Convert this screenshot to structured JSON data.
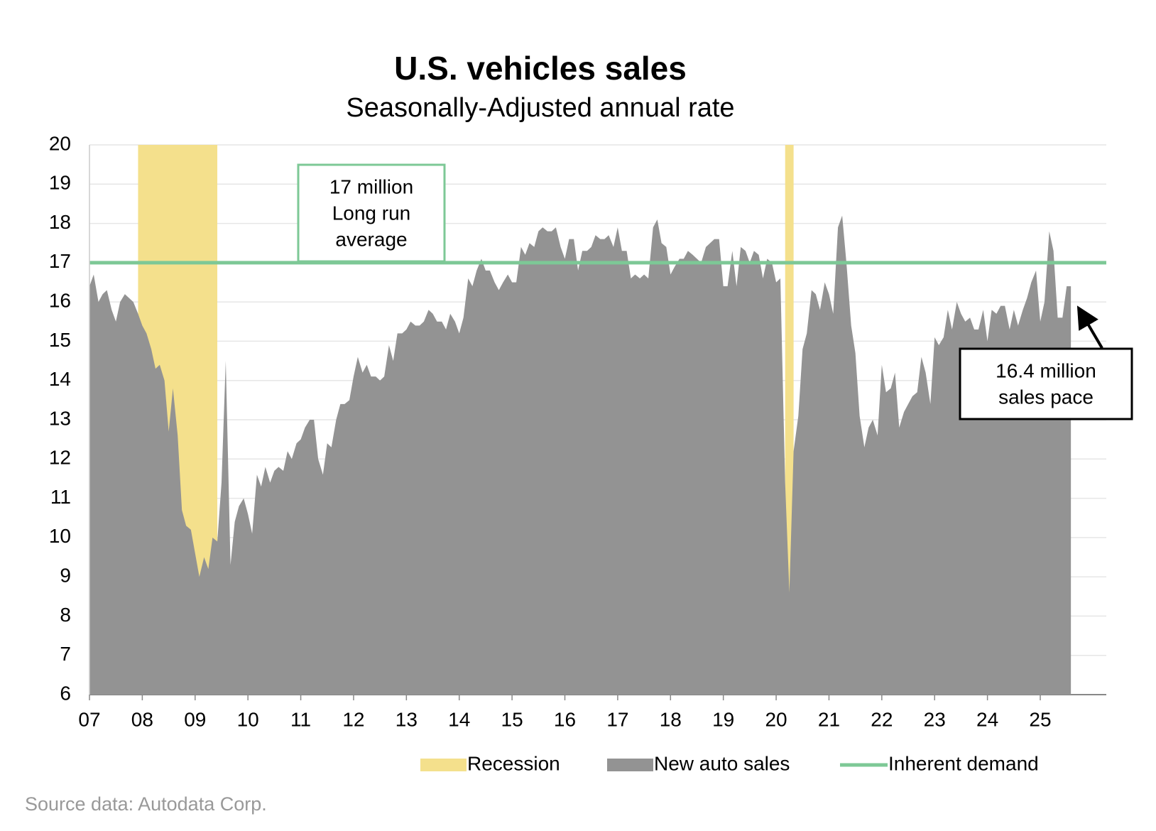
{
  "chart_data": {
    "type": "area",
    "title": "U.S. vehicles sales",
    "subtitle": "Seasonally-Adjusted annual rate",
    "source": "Source data: Autodata Corp.",
    "ylim": [
      6,
      20
    ],
    "yticks": [
      6,
      7,
      8,
      9,
      10,
      11,
      12,
      13,
      14,
      15,
      16,
      17,
      18,
      19,
      20
    ],
    "xlim": [
      2007,
      2026.25
    ],
    "xticks": [
      {
        "value": 2007,
        "label": "07"
      },
      {
        "value": 2008,
        "label": "08"
      },
      {
        "value": 2009,
        "label": "09"
      },
      {
        "value": 2010,
        "label": "10"
      },
      {
        "value": 2011,
        "label": "11"
      },
      {
        "value": 2012,
        "label": "12"
      },
      {
        "value": 2013,
        "label": "13"
      },
      {
        "value": 2014,
        "label": "14"
      },
      {
        "value": 2015,
        "label": "15"
      },
      {
        "value": 2016,
        "label": "16"
      },
      {
        "value": 2017,
        "label": "17"
      },
      {
        "value": 2018,
        "label": "18"
      },
      {
        "value": 2019,
        "label": "19"
      },
      {
        "value": 2020,
        "label": "20"
      },
      {
        "value": 2021,
        "label": "21"
      },
      {
        "value": 2022,
        "label": "22"
      },
      {
        "value": 2023,
        "label": "23"
      },
      {
        "value": 2024,
        "label": "24"
      },
      {
        "value": 2025,
        "label": "25"
      }
    ],
    "grid": true,
    "x": [
      2007,
      2007.08,
      2007.17,
      2007.25,
      2007.33,
      2007.42,
      2007.5,
      2007.58,
      2007.67,
      2007.75,
      2007.83,
      2007.92,
      2008,
      2008.08,
      2008.17,
      2008.25,
      2008.33,
      2008.42,
      2008.5,
      2008.58,
      2008.67,
      2008.75,
      2008.83,
      2008.92,
      2009,
      2009.08,
      2009.17,
      2009.25,
      2009.33,
      2009.42,
      2009.5,
      2009.58,
      2009.67,
      2009.75,
      2009.83,
      2009.92,
      2010,
      2010.08,
      2010.17,
      2010.25,
      2010.33,
      2010.42,
      2010.5,
      2010.58,
      2010.67,
      2010.75,
      2010.83,
      2010.92,
      2011,
      2011.08,
      2011.17,
      2011.25,
      2011.33,
      2011.42,
      2011.5,
      2011.58,
      2011.67,
      2011.75,
      2011.83,
      2011.92,
      2012,
      2012.08,
      2012.17,
      2012.25,
      2012.33,
      2012.42,
      2012.5,
      2012.58,
      2012.67,
      2012.75,
      2012.83,
      2012.92,
      2013,
      2013.08,
      2013.17,
      2013.25,
      2013.33,
      2013.42,
      2013.5,
      2013.58,
      2013.67,
      2013.75,
      2013.83,
      2013.92,
      2014,
      2014.08,
      2014.17,
      2014.25,
      2014.33,
      2014.42,
      2014.5,
      2014.58,
      2014.67,
      2014.75,
      2014.83,
      2014.92,
      2015,
      2015.08,
      2015.17,
      2015.25,
      2015.33,
      2015.42,
      2015.5,
      2015.58,
      2015.67,
      2015.75,
      2015.83,
      2015.92,
      2016,
      2016.08,
      2016.17,
      2016.25,
      2016.33,
      2016.42,
      2016.5,
      2016.58,
      2016.67,
      2016.75,
      2016.83,
      2016.92,
      2017,
      2017.08,
      2017.17,
      2017.25,
      2017.33,
      2017.42,
      2017.5,
      2017.58,
      2017.67,
      2017.75,
      2017.83,
      2017.92,
      2018,
      2018.08,
      2018.17,
      2018.25,
      2018.33,
      2018.42,
      2018.5,
      2018.58,
      2018.67,
      2018.75,
      2018.83,
      2018.92,
      2019,
      2019.08,
      2019.17,
      2019.25,
      2019.33,
      2019.42,
      2019.5,
      2019.58,
      2019.67,
      2019.75,
      2019.83,
      2019.92,
      2020,
      2020.08,
      2020.17,
      2020.25,
      2020.33,
      2020.42,
      2020.5,
      2020.58,
      2020.67,
      2020.75,
      2020.83,
      2020.92,
      2021,
      2021.08,
      2021.17,
      2021.25,
      2021.33,
      2021.42,
      2021.5,
      2021.58,
      2021.67,
      2021.75,
      2021.83,
      2021.92,
      2022,
      2022.08,
      2022.17,
      2022.25,
      2022.33,
      2022.42,
      2022.5,
      2022.58,
      2022.67,
      2022.75,
      2022.83,
      2022.92,
      2023,
      2023.08,
      2023.17,
      2023.25,
      2023.33,
      2023.42,
      2023.5,
      2023.58,
      2023.67,
      2023.75,
      2023.83,
      2023.92,
      2024,
      2024.08,
      2024.17,
      2024.25,
      2024.33,
      2024.42,
      2024.5,
      2024.58,
      2024.67,
      2024.75,
      2024.83,
      2024.92,
      2025,
      2025.08,
      2025.17,
      2025.25,
      2025.33,
      2025.42,
      2025.5,
      2025.58
    ],
    "series": [
      {
        "name": "New auto sales",
        "color": "#939393",
        "values": [
          16.4,
          16.7,
          16.0,
          16.2,
          16.3,
          15.8,
          15.5,
          16.0,
          16.2,
          16.1,
          16.0,
          15.7,
          15.4,
          15.2,
          14.8,
          14.3,
          14.4,
          14.0,
          12.7,
          13.8,
          12.6,
          10.7,
          10.3,
          10.2,
          9.6,
          9.0,
          9.5,
          9.2,
          10.0,
          9.9,
          11.4,
          14.5,
          9.3,
          10.4,
          10.8,
          11.0,
          10.6,
          10.1,
          11.6,
          11.3,
          11.8,
          11.4,
          11.7,
          11.8,
          11.7,
          12.2,
          12.0,
          12.4,
          12.5,
          12.8,
          13.0,
          13.0,
          12.0,
          11.6,
          12.4,
          12.3,
          13.0,
          13.4,
          13.4,
          13.5,
          14.1,
          14.6,
          14.2,
          14.4,
          14.1,
          14.1,
          14.0,
          14.1,
          14.9,
          14.5,
          15.2,
          15.2,
          15.3,
          15.5,
          15.4,
          15.4,
          15.5,
          15.8,
          15.7,
          15.5,
          15.5,
          15.3,
          15.7,
          15.5,
          15.2,
          15.6,
          16.6,
          16.4,
          16.8,
          17.1,
          16.8,
          16.8,
          16.5,
          16.3,
          16.5,
          16.7,
          16.5,
          16.5,
          17.4,
          17.2,
          17.5,
          17.4,
          17.8,
          17.9,
          17.8,
          17.8,
          17.9,
          17.4,
          17.1,
          17.6,
          17.6,
          16.8,
          17.3,
          17.3,
          17.4,
          17.7,
          17.6,
          17.6,
          17.7,
          17.4,
          17.9,
          17.3,
          17.3,
          16.6,
          16.7,
          16.6,
          16.7,
          16.6,
          17.9,
          18.1,
          17.5,
          17.4,
          16.7,
          16.9,
          17.1,
          17.1,
          17.3,
          17.2,
          17.1,
          17.0,
          17.4,
          17.5,
          17.6,
          17.6,
          16.4,
          16.4,
          17.3,
          16.4,
          17.4,
          17.3,
          17.0,
          17.3,
          17.2,
          16.6,
          17.1,
          17.0,
          16.5,
          16.6,
          11.4,
          8.6,
          12.2,
          13.1,
          14.8,
          15.2,
          16.3,
          16.2,
          15.8,
          16.5,
          16.2,
          15.7,
          17.9,
          18.2,
          17.0,
          15.4,
          14.7,
          13.1,
          12.3,
          12.8,
          13.0,
          12.6,
          14.4,
          13.7,
          13.8,
          14.2,
          12.8,
          13.2,
          13.4,
          13.6,
          13.7,
          14.6,
          14.2,
          13.4,
          15.1,
          14.9,
          15.1,
          15.8,
          15.3,
          16.0,
          15.7,
          15.5,
          15.6,
          15.3,
          15.3,
          15.8,
          15.0,
          15.8,
          15.7,
          15.9,
          15.9,
          15.3,
          15.8,
          15.4,
          15.8,
          16.1,
          16.5,
          16.8,
          15.5,
          16.0,
          17.8,
          17.3,
          15.6,
          15.6,
          16.4,
          16.4
        ]
      }
    ],
    "inherent_demand": {
      "name": "Inherent demand",
      "value": 17,
      "color": "#7dc896"
    },
    "recession": {
      "name": "Recession",
      "color": "#f4e08c",
      "ranges": [
        [
          2007.92,
          2009.42
        ],
        [
          2020.17,
          2020.33
        ]
      ]
    },
    "annotations": [
      {
        "lines": [
          "17 million",
          "Long run",
          "average"
        ],
        "border": "#7dc896"
      },
      {
        "lines": [
          "16.4 million",
          "sales pace"
        ],
        "border": "#000000"
      }
    ]
  }
}
